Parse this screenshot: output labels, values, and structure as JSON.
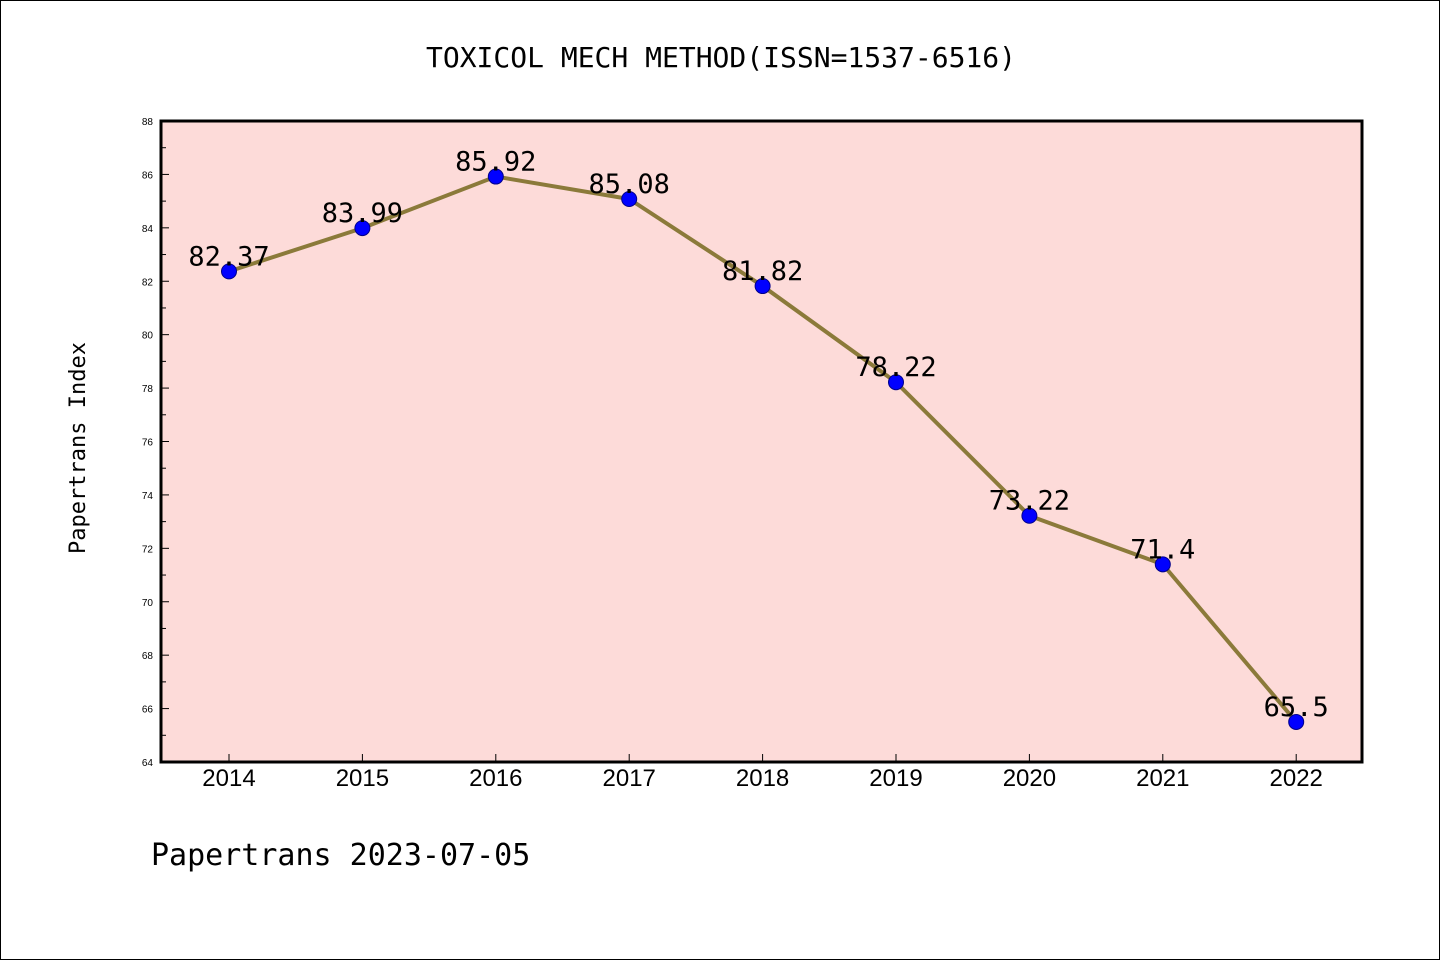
{
  "chart_data": {
    "type": "line",
    "title": "TOXICOL MECH METHOD(ISSN=1537-6516)",
    "xlabel": "",
    "ylabel": "Papertrans Index",
    "categories": [
      "2014",
      "2015",
      "2016",
      "2017",
      "2018",
      "2019",
      "2020",
      "2021",
      "2022"
    ],
    "series": [
      {
        "values": [
          82.37,
          83.99,
          85.92,
          85.08,
          81.82,
          78.22,
          73.22,
          71.4,
          65.5
        ],
        "labels": [
          "82.37",
          "83.99",
          "85.92",
          "85.08",
          "81.82",
          "78.22",
          "73.22",
          "71.4",
          "65.5"
        ]
      }
    ],
    "ylim": [
      64,
      88
    ],
    "yticks": [
      "64",
      "66",
      "68",
      "70",
      "72",
      "74",
      "76",
      "78",
      "80",
      "82",
      "84",
      "86",
      "88"
    ],
    "grid": false,
    "legend": "none"
  },
  "footer": "Papertrans 2023-07-05",
  "colors": {
    "plot_background": "#fddbd9",
    "line": "#8b7a3a",
    "marker": "#0000ff",
    "axes": "#000000"
  }
}
